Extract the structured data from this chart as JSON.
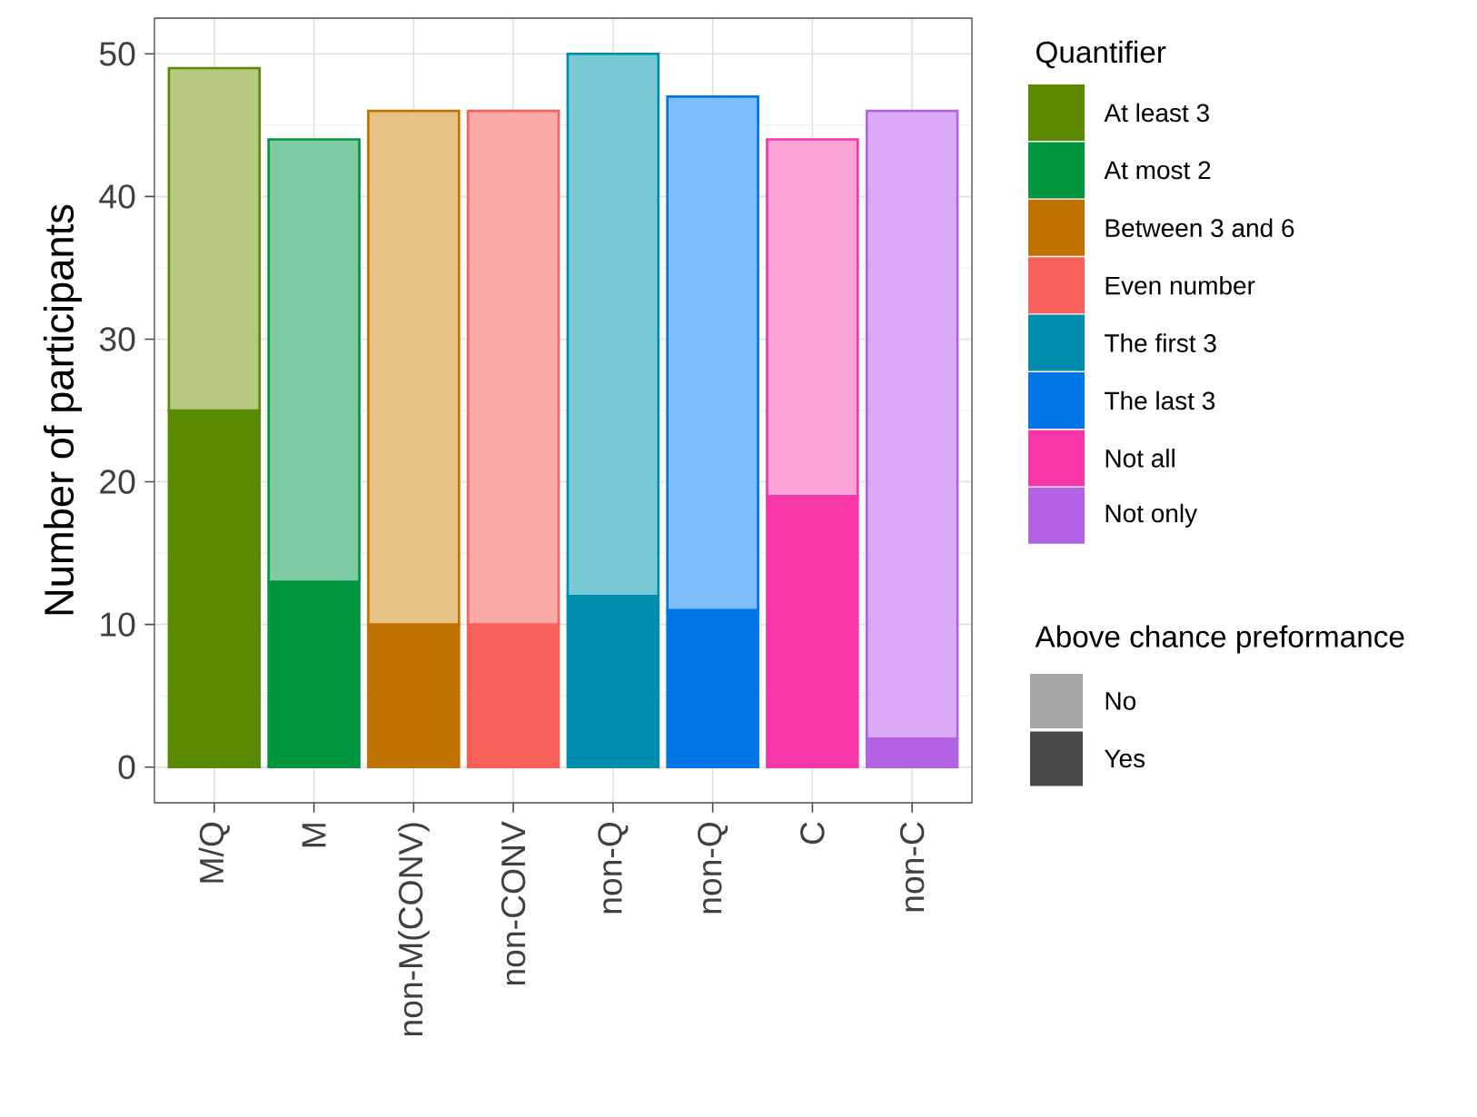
{
  "chart_data": {
    "type": "bar",
    "stacked": true,
    "categories": [
      "M/Q",
      "M",
      "non-M(CONV)",
      "non-CONV",
      "non-Q",
      "non-Q",
      "C",
      "non-C"
    ],
    "series": [
      {
        "name": "Yes",
        "color": "#474747",
        "colors": [
          "#5a8a00",
          "#00963f",
          "#c07200",
          "#f8605a",
          "#008cae",
          "#0075e5",
          "#f736a8",
          "#b262e2"
        ],
        "values": [
          25,
          13,
          10,
          10,
          12,
          11,
          19,
          2
        ]
      },
      {
        "name": "No",
        "color": "#a6a6a6",
        "colors": [
          "#b8c880",
          "#7ecaa2",
          "#e6c384",
          "#fcaaa8",
          "#78c9d4",
          "#7dbdfc",
          "#fba2d6",
          "#daaaf6"
        ],
        "values": [
          24,
          31,
          36,
          36,
          38,
          36,
          25,
          44
        ]
      }
    ],
    "ylabel": "Number of participants",
    "legend_title": "Above chance preformance",
    "annotations": [
      "Quantifier",
      "At least 3",
      "At most 2",
      "Between 3 and 6",
      "Even number",
      "The first 3",
      "The last 3",
      "Not all",
      "Not only"
    ],
    "ylim": [
      -2.5,
      52.5
    ],
    "yticks": [
      0,
      10,
      20,
      30,
      40,
      50
    ],
    "grid": true,
    "legend": "right"
  }
}
